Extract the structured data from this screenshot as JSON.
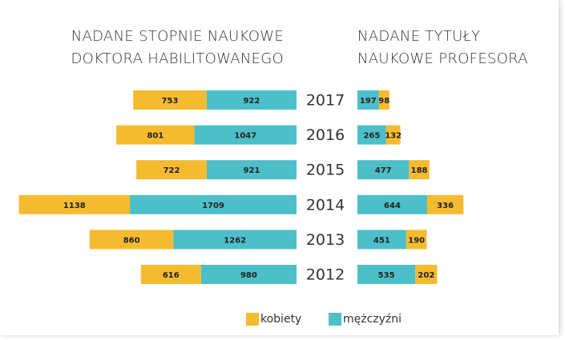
{
  "chart_data": {
    "type": "bar",
    "orientation": "horizontal",
    "categories": [
      "2017",
      "2016",
      "2015",
      "2014",
      "2013",
      "2012"
    ],
    "series": [
      {
        "name": "kobiety",
        "color": "#f5bb30"
      },
      {
        "name": "mężczyźni",
        "color": "#4cbfc9"
      }
    ],
    "panels": [
      {
        "title": "NADANE STOPNIE NAUKOWE\nDOKTORA HABILITOWANEGO",
        "xlim": [
          0,
          3000
        ],
        "series": [
          {
            "values": [
              753,
              801,
              722,
              1138,
              860,
              616
            ]
          },
          {
            "values": [
              922,
              1047,
              921,
              1709,
              1262,
              980
            ]
          }
        ]
      },
      {
        "title": "NADANE TYTUŁY\nNAUKOWE PROFESORA",
        "xlim": [
          0,
          1000
        ],
        "series": [
          {
            "values": [
              98,
              132,
              188,
              336,
              190,
              202
            ]
          },
          {
            "values": [
              197,
              265,
              477,
              644,
              451,
              535
            ]
          }
        ]
      }
    ]
  }
}
